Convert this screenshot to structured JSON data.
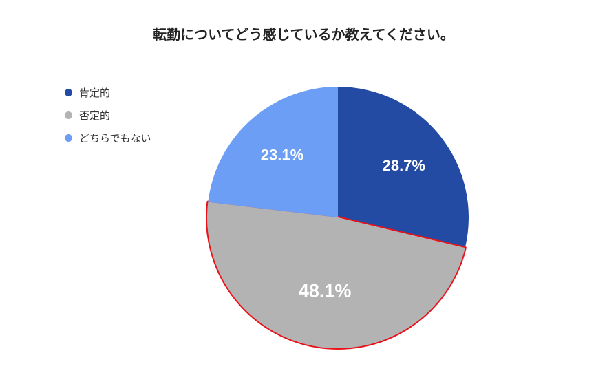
{
  "chart_data": {
    "type": "pie",
    "title": "転勤についてどう感じているか教えてください。",
    "legend_position": "left",
    "categories": [
      "肯定的",
      "否定的",
      "どちらでもない"
    ],
    "values": [
      28.7,
      48.1,
      23.1
    ],
    "labels": [
      "28.7%",
      "48.1%",
      "23.1%"
    ],
    "colors": [
      "#234BA3",
      "#B3B3B3",
      "#6D9EF5"
    ],
    "highlighted_category": "否定的",
    "highlight_color": "#E8121A"
  }
}
